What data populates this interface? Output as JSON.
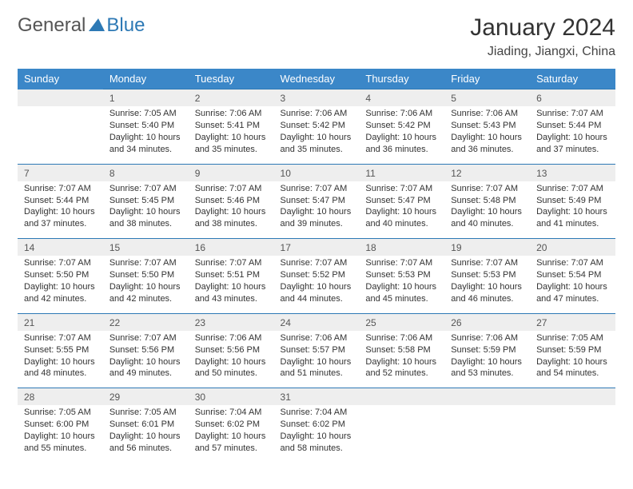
{
  "logo": {
    "text1": "General",
    "text2": "Blue",
    "triangle_color": "#2d79b5"
  },
  "title": "January 2024",
  "location": "Jiading, Jiangxi, China",
  "colors": {
    "header_bg": "#3b87c8",
    "header_text": "#ffffff",
    "daynum_bg": "#eeeeee",
    "row_divider": "#2d79b5",
    "body_text": "#333333"
  },
  "fonts": {
    "title_size": 30,
    "location_size": 16,
    "header_size": 13,
    "daynum_size": 12,
    "cell_size": 11
  },
  "weekdays": [
    "Sunday",
    "Monday",
    "Tuesday",
    "Wednesday",
    "Thursday",
    "Friday",
    "Saturday"
  ],
  "weeks": [
    {
      "days": [
        null,
        {
          "n": "1",
          "sr": "Sunrise: 7:05 AM",
          "ss": "Sunset: 5:40 PM",
          "d1": "Daylight: 10 hours",
          "d2": "and 34 minutes."
        },
        {
          "n": "2",
          "sr": "Sunrise: 7:06 AM",
          "ss": "Sunset: 5:41 PM",
          "d1": "Daylight: 10 hours",
          "d2": "and 35 minutes."
        },
        {
          "n": "3",
          "sr": "Sunrise: 7:06 AM",
          "ss": "Sunset: 5:42 PM",
          "d1": "Daylight: 10 hours",
          "d2": "and 35 minutes."
        },
        {
          "n": "4",
          "sr": "Sunrise: 7:06 AM",
          "ss": "Sunset: 5:42 PM",
          "d1": "Daylight: 10 hours",
          "d2": "and 36 minutes."
        },
        {
          "n": "5",
          "sr": "Sunrise: 7:06 AM",
          "ss": "Sunset: 5:43 PM",
          "d1": "Daylight: 10 hours",
          "d2": "and 36 minutes."
        },
        {
          "n": "6",
          "sr": "Sunrise: 7:07 AM",
          "ss": "Sunset: 5:44 PM",
          "d1": "Daylight: 10 hours",
          "d2": "and 37 minutes."
        }
      ]
    },
    {
      "days": [
        {
          "n": "7",
          "sr": "Sunrise: 7:07 AM",
          "ss": "Sunset: 5:44 PM",
          "d1": "Daylight: 10 hours",
          "d2": "and 37 minutes."
        },
        {
          "n": "8",
          "sr": "Sunrise: 7:07 AM",
          "ss": "Sunset: 5:45 PM",
          "d1": "Daylight: 10 hours",
          "d2": "and 38 minutes."
        },
        {
          "n": "9",
          "sr": "Sunrise: 7:07 AM",
          "ss": "Sunset: 5:46 PM",
          "d1": "Daylight: 10 hours",
          "d2": "and 38 minutes."
        },
        {
          "n": "10",
          "sr": "Sunrise: 7:07 AM",
          "ss": "Sunset: 5:47 PM",
          "d1": "Daylight: 10 hours",
          "d2": "and 39 minutes."
        },
        {
          "n": "11",
          "sr": "Sunrise: 7:07 AM",
          "ss": "Sunset: 5:47 PM",
          "d1": "Daylight: 10 hours",
          "d2": "and 40 minutes."
        },
        {
          "n": "12",
          "sr": "Sunrise: 7:07 AM",
          "ss": "Sunset: 5:48 PM",
          "d1": "Daylight: 10 hours",
          "d2": "and 40 minutes."
        },
        {
          "n": "13",
          "sr": "Sunrise: 7:07 AM",
          "ss": "Sunset: 5:49 PM",
          "d1": "Daylight: 10 hours",
          "d2": "and 41 minutes."
        }
      ]
    },
    {
      "days": [
        {
          "n": "14",
          "sr": "Sunrise: 7:07 AM",
          "ss": "Sunset: 5:50 PM",
          "d1": "Daylight: 10 hours",
          "d2": "and 42 minutes."
        },
        {
          "n": "15",
          "sr": "Sunrise: 7:07 AM",
          "ss": "Sunset: 5:50 PM",
          "d1": "Daylight: 10 hours",
          "d2": "and 42 minutes."
        },
        {
          "n": "16",
          "sr": "Sunrise: 7:07 AM",
          "ss": "Sunset: 5:51 PM",
          "d1": "Daylight: 10 hours",
          "d2": "and 43 minutes."
        },
        {
          "n": "17",
          "sr": "Sunrise: 7:07 AM",
          "ss": "Sunset: 5:52 PM",
          "d1": "Daylight: 10 hours",
          "d2": "and 44 minutes."
        },
        {
          "n": "18",
          "sr": "Sunrise: 7:07 AM",
          "ss": "Sunset: 5:53 PM",
          "d1": "Daylight: 10 hours",
          "d2": "and 45 minutes."
        },
        {
          "n": "19",
          "sr": "Sunrise: 7:07 AM",
          "ss": "Sunset: 5:53 PM",
          "d1": "Daylight: 10 hours",
          "d2": "and 46 minutes."
        },
        {
          "n": "20",
          "sr": "Sunrise: 7:07 AM",
          "ss": "Sunset: 5:54 PM",
          "d1": "Daylight: 10 hours",
          "d2": "and 47 minutes."
        }
      ]
    },
    {
      "days": [
        {
          "n": "21",
          "sr": "Sunrise: 7:07 AM",
          "ss": "Sunset: 5:55 PM",
          "d1": "Daylight: 10 hours",
          "d2": "and 48 minutes."
        },
        {
          "n": "22",
          "sr": "Sunrise: 7:07 AM",
          "ss": "Sunset: 5:56 PM",
          "d1": "Daylight: 10 hours",
          "d2": "and 49 minutes."
        },
        {
          "n": "23",
          "sr": "Sunrise: 7:06 AM",
          "ss": "Sunset: 5:56 PM",
          "d1": "Daylight: 10 hours",
          "d2": "and 50 minutes."
        },
        {
          "n": "24",
          "sr": "Sunrise: 7:06 AM",
          "ss": "Sunset: 5:57 PM",
          "d1": "Daylight: 10 hours",
          "d2": "and 51 minutes."
        },
        {
          "n": "25",
          "sr": "Sunrise: 7:06 AM",
          "ss": "Sunset: 5:58 PM",
          "d1": "Daylight: 10 hours",
          "d2": "and 52 minutes."
        },
        {
          "n": "26",
          "sr": "Sunrise: 7:06 AM",
          "ss": "Sunset: 5:59 PM",
          "d1": "Daylight: 10 hours",
          "d2": "and 53 minutes."
        },
        {
          "n": "27",
          "sr": "Sunrise: 7:05 AM",
          "ss": "Sunset: 5:59 PM",
          "d1": "Daylight: 10 hours",
          "d2": "and 54 minutes."
        }
      ]
    },
    {
      "days": [
        {
          "n": "28",
          "sr": "Sunrise: 7:05 AM",
          "ss": "Sunset: 6:00 PM",
          "d1": "Daylight: 10 hours",
          "d2": "and 55 minutes."
        },
        {
          "n": "29",
          "sr": "Sunrise: 7:05 AM",
          "ss": "Sunset: 6:01 PM",
          "d1": "Daylight: 10 hours",
          "d2": "and 56 minutes."
        },
        {
          "n": "30",
          "sr": "Sunrise: 7:04 AM",
          "ss": "Sunset: 6:02 PM",
          "d1": "Daylight: 10 hours",
          "d2": "and 57 minutes."
        },
        {
          "n": "31",
          "sr": "Sunrise: 7:04 AM",
          "ss": "Sunset: 6:02 PM",
          "d1": "Daylight: 10 hours",
          "d2": "and 58 minutes."
        },
        null,
        null,
        null
      ]
    }
  ]
}
